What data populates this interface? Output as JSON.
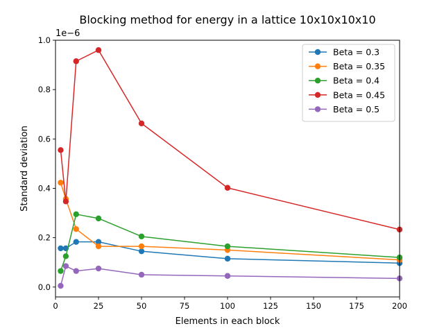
{
  "chart_data": {
    "type": "line",
    "title": "Blocking method for energy in a lattice 10x10x10x10",
    "xlabel": "Elements in each block",
    "ylabel": "Standard deviation",
    "y_offset_label": "1e−6",
    "xlim": [
      0,
      200
    ],
    "ylim": [
      -0.04,
      1.0
    ],
    "x_ticks": [
      0,
      25,
      50,
      75,
      100,
      125,
      150,
      175,
      200
    ],
    "x_tick_labels": [
      "0",
      "25",
      "50",
      "75",
      "100",
      "125",
      "150",
      "175",
      "200"
    ],
    "y_ticks": [
      0.0,
      0.2,
      0.4,
      0.6,
      0.8,
      1.0
    ],
    "y_tick_labels": [
      "0.0",
      "0.2",
      "0.4",
      "0.6",
      "0.8",
      "1.0"
    ],
    "grid": false,
    "legend_position": "top-right",
    "x": [
      3,
      6,
      12,
      25,
      50,
      100,
      200
    ],
    "series": [
      {
        "name": "Beta = 0.3",
        "color": "#1f77b4",
        "values": [
          0.157,
          0.157,
          0.183,
          0.183,
          0.145,
          0.115,
          0.097
        ]
      },
      {
        "name": "Beta = 0.35",
        "color": "#ff7f0e",
        "values": [
          0.423,
          0.357,
          0.235,
          0.165,
          0.165,
          0.15,
          0.11
        ]
      },
      {
        "name": "Beta = 0.4",
        "color": "#2ca02c",
        "values": [
          0.065,
          0.125,
          0.295,
          0.278,
          0.205,
          0.165,
          0.12
        ]
      },
      {
        "name": "Beta = 0.45",
        "color": "#d62728",
        "values": [
          0.555,
          0.347,
          0.915,
          0.96,
          0.663,
          0.402,
          0.233
        ]
      },
      {
        "name": "Beta = 0.5",
        "color": "#9467bd",
        "values": [
          0.005,
          0.085,
          0.065,
          0.075,
          0.05,
          0.045,
          0.035
        ]
      }
    ]
  }
}
